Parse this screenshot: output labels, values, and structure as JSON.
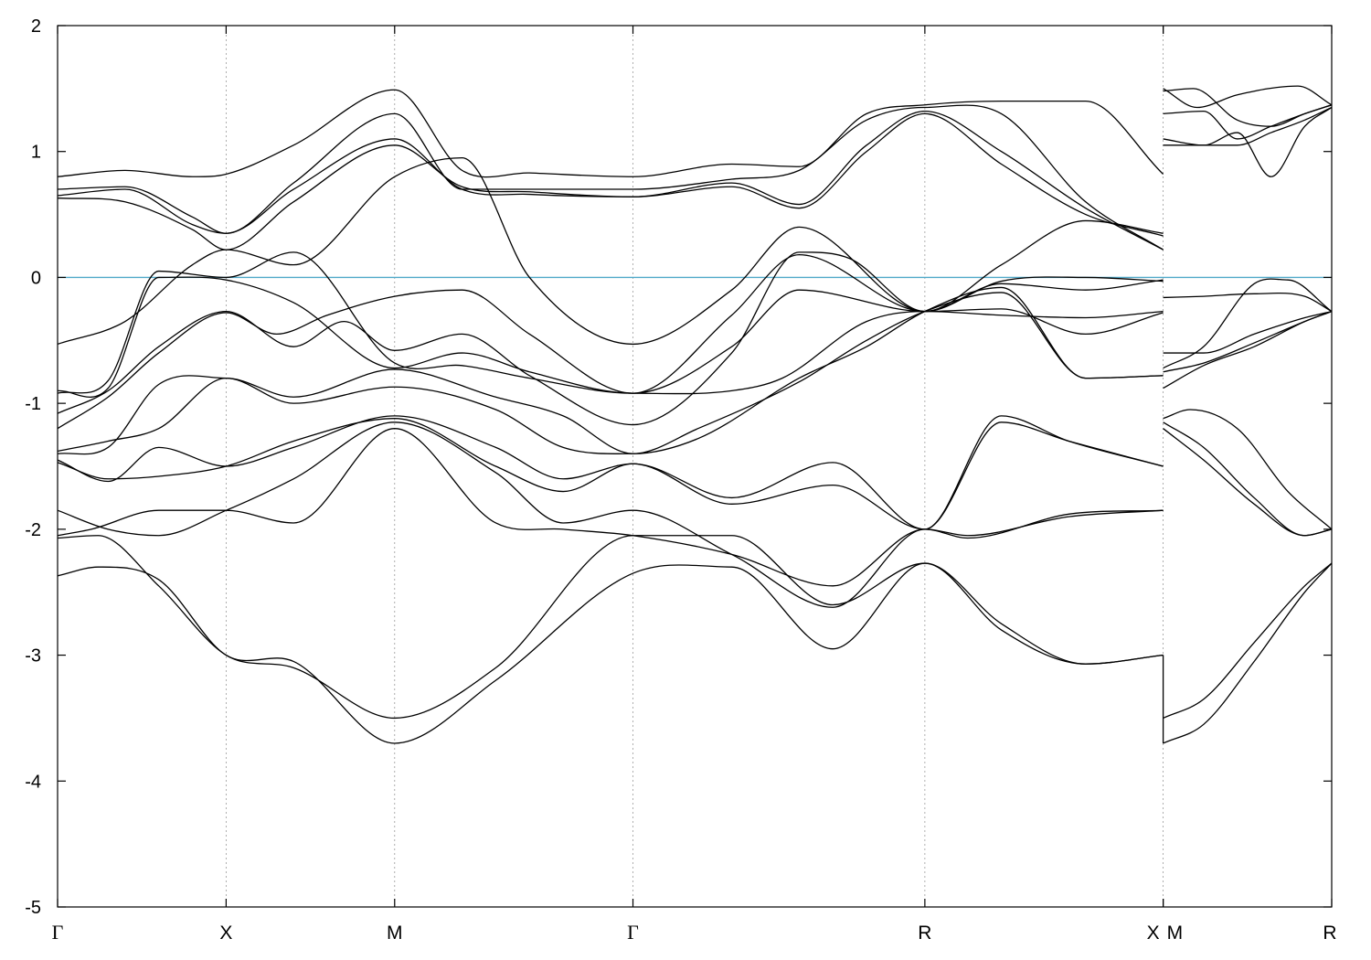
{
  "chart_data": {
    "type": "line",
    "title": "",
    "xlabel": "",
    "ylabel": "",
    "ylim": [
      -5,
      2
    ],
    "y_ticks": [
      -5,
      -4,
      -3,
      -2,
      -1,
      0,
      1,
      2
    ],
    "grid": "vertical dotted lines at high-symmetry points",
    "fermi_level": {
      "y": 0,
      "color": "#4fa8c8"
    },
    "line_color": "#000000",
    "k_labels": [
      {
        "label": "Γ",
        "k": 0.0
      },
      {
        "label": "X",
        "k": 0.5
      },
      {
        "label": "M",
        "k": 1.0
      },
      {
        "label": "Γ",
        "k": 1.707
      },
      {
        "label": "R",
        "k": 2.573
      },
      {
        "label": "X",
        "k": 3.28
      },
      {
        "label": "M",
        "k": 3.28
      },
      {
        "label": "R",
        "k": 3.78
      }
    ],
    "panel_break_k": 3.28,
    "segments": [
      {
        "name": "Γ-X-M-Γ-R-X",
        "k_range": [
          0.0,
          3.28
        ],
        "bands": [
          {
            "k": [
              0,
              0.12,
              0.3,
              0.5,
              0.7,
              1.0,
              1.3,
              1.707,
              2.0,
              2.3,
              2.573,
              2.8,
              3.05,
              3.28
            ],
            "e": [
              -2.37,
              -2.3,
              -2.4,
              -3.0,
              -3.05,
              -3.7,
              -3.2,
              -2.35,
              -2.3,
              -2.95,
              -2.27,
              -2.8,
              -3.07,
              -3.0
            ]
          },
          {
            "k": [
              0,
              0.12,
              0.3,
              0.5,
              0.7,
              1.0,
              1.3,
              1.707,
              2.0,
              2.3,
              2.573,
              2.8,
              3.05,
              3.28
            ],
            "e": [
              -2.07,
              -2.05,
              -2.45,
              -3.0,
              -3.1,
              -3.5,
              -3.1,
              -2.05,
              -2.05,
              -2.6,
              -2.27,
              -2.75,
              -3.07,
              -3.0
            ]
          },
          {
            "k": [
              0,
              0.1,
              0.3,
              0.5,
              0.7,
              1.0,
              1.3,
              1.5,
              1.707,
              2.0,
              2.3,
              2.573,
              2.7,
              3.0,
              3.28
            ],
            "e": [
              -2.05,
              -2.0,
              -1.85,
              -1.85,
              -1.95,
              -1.2,
              -1.95,
              -2.0,
              -2.05,
              -2.2,
              -2.45,
              -2.0,
              -2.05,
              -1.9,
              -1.85
            ]
          },
          {
            "k": [
              0,
              0.15,
              0.3,
              0.5,
              0.7,
              1.0,
              1.3,
              1.5,
              1.707,
              2.0,
              2.3,
              2.573,
              2.7,
              3.0,
              3.28
            ],
            "e": [
              -1.85,
              -2.0,
              -2.05,
              -1.85,
              -1.6,
              -1.15,
              -1.55,
              -1.95,
              -1.85,
              -2.2,
              -2.62,
              -2.0,
              -2.07,
              -1.88,
              -1.85
            ]
          },
          {
            "k": [
              0,
              0.15,
              0.3,
              0.5,
              0.7,
              1.0,
              1.3,
              1.5,
              1.707,
              2.0,
              2.3,
              2.573,
              2.8,
              3.0,
              3.28
            ],
            "e": [
              -1.47,
              -1.6,
              -1.58,
              -1.5,
              -1.3,
              -1.12,
              -1.5,
              -1.7,
              -1.48,
              -1.75,
              -1.47,
              -2.0,
              -1.15,
              -1.3,
              -1.5
            ]
          },
          {
            "k": [
              0,
              0.15,
              0.3,
              0.5,
              0.7,
              1.0,
              1.3,
              1.5,
              1.707,
              2.0,
              2.3,
              2.573,
              2.8,
              3.0,
              3.28
            ],
            "e": [
              -1.45,
              -1.62,
              -1.35,
              -1.5,
              -1.35,
              -1.1,
              -1.35,
              -1.6,
              -1.48,
              -1.8,
              -1.65,
              -2.0,
              -1.1,
              -1.3,
              -1.5
            ]
          },
          {
            "k": [
              0,
              0.15,
              0.3,
              0.5,
              0.7,
              1.0,
              1.3,
              1.5,
              1.707,
              1.9,
              2.2,
              2.4,
              2.573,
              2.8,
              3.05,
              3.28
            ],
            "e": [
              -1.4,
              -1.35,
              -0.85,
              -0.8,
              -1.0,
              -0.87,
              -1.05,
              -1.35,
              -1.4,
              -1.28,
              -0.8,
              -0.55,
              -0.27,
              -0.08,
              -0.8,
              -0.78
            ]
          },
          {
            "k": [
              0,
              0.15,
              0.3,
              0.5,
              0.7,
              1.0,
              1.3,
              1.5,
              1.707,
              1.9,
              2.2,
              2.4,
              2.573,
              2.8,
              3.05,
              3.28
            ],
            "e": [
              -1.38,
              -1.3,
              -1.2,
              -0.8,
              -0.95,
              -0.73,
              -0.95,
              -1.1,
              -1.4,
              -1.2,
              -0.83,
              -0.5,
              -0.27,
              -0.12,
              -0.8,
              -0.78
            ]
          },
          {
            "k": [
              0,
              0.15,
              0.3,
              0.5,
              0.65,
              0.8,
              1.0,
              1.2,
              1.4,
              1.707,
              2.0,
              2.15,
              2.4,
              2.573,
              2.8,
              3.05,
              3.28
            ],
            "e": [
              -1.2,
              -0.95,
              -0.6,
              -0.28,
              -0.45,
              -0.3,
              -0.15,
              -0.1,
              -0.45,
              -0.92,
              -0.9,
              -0.8,
              -0.35,
              -0.27,
              -0.3,
              -0.32,
              -0.27
            ]
          },
          {
            "k": [
              0,
              0.15,
              0.3,
              0.5,
              0.7,
              0.85,
              1.0,
              1.2,
              1.4,
              1.707,
              2.0,
              2.2,
              2.35,
              2.573,
              2.8,
              3.05,
              3.28
            ],
            "e": [
              -1.08,
              -0.9,
              -0.55,
              -0.27,
              -0.55,
              -0.35,
              -0.58,
              -0.45,
              -0.78,
              -1.17,
              -0.6,
              0.2,
              0.15,
              -0.27,
              -0.25,
              -0.45,
              -0.28
            ]
          },
          {
            "k": [
              0,
              0.15,
              0.3,
              0.5,
              0.7,
              1.0,
              1.2,
              1.4,
              1.707,
              2.0,
              2.2,
              2.573,
              2.8,
              3.05,
              3.28
            ],
            "e": [
              -0.9,
              -0.88,
              0.0,
              -0.02,
              -0.2,
              -0.72,
              -0.6,
              -0.75,
              -0.92,
              -0.55,
              -0.1,
              -0.27,
              -0.05,
              -0.1,
              -0.02
            ]
          },
          {
            "k": [
              0,
              0.15,
              0.3,
              0.5,
              0.7,
              1.0,
              1.2,
              1.4,
              1.707,
              2.0,
              2.2,
              2.573,
              2.8,
              3.05,
              3.28
            ],
            "e": [
              -0.92,
              -0.82,
              0.05,
              0.0,
              0.2,
              -0.68,
              -0.7,
              -0.8,
              -0.92,
              -0.3,
              0.18,
              -0.27,
              -0.03,
              0.0,
              -0.03
            ]
          },
          {
            "k": [
              0,
              0.2,
              0.4,
              0.5,
              0.7,
              1.0,
              1.2,
              1.4,
              1.707,
              2.0,
              2.2,
              2.573,
              2.8,
              3.05,
              3.28
            ],
            "e": [
              -0.53,
              -0.35,
              0.1,
              0.22,
              0.1,
              0.8,
              0.95,
              0.0,
              -0.53,
              -0.1,
              0.4,
              -0.27,
              0.1,
              0.45,
              0.35
            ]
          },
          {
            "k": [
              0,
              0.2,
              0.4,
              0.5,
              0.7,
              1.0,
              1.2,
              1.4,
              1.707,
              2.0,
              2.2,
              2.4,
              2.573,
              2.8,
              3.05,
              3.28
            ],
            "e": [
              0.63,
              0.6,
              0.38,
              0.22,
              0.6,
              1.05,
              0.72,
              0.68,
              0.64,
              0.72,
              0.55,
              1.0,
              1.3,
              0.9,
              0.5,
              0.33
            ]
          },
          {
            "k": [
              0,
              0.2,
              0.4,
              0.5,
              0.7,
              1.0,
              1.2,
              1.4,
              1.707,
              2.0,
              2.2,
              2.4,
              2.573,
              2.8,
              3.05,
              3.28
            ],
            "e": [
              0.65,
              0.7,
              0.42,
              0.35,
              0.7,
              1.1,
              0.7,
              0.66,
              0.64,
              0.75,
              0.58,
              1.05,
              1.32,
              1.0,
              0.55,
              0.22
            ]
          },
          {
            "k": [
              0,
              0.2,
              0.4,
              0.5,
              0.7,
              1.0,
              1.2,
              1.4,
              1.707,
              2.0,
              2.2,
              2.4,
              2.573,
              2.8,
              3.05,
              3.28
            ],
            "e": [
              0.7,
              0.72,
              0.48,
              0.35,
              0.75,
              1.3,
              0.7,
              0.7,
              0.7,
              0.78,
              0.85,
              1.25,
              1.35,
              1.3,
              0.6,
              0.22
            ]
          },
          {
            "k": [
              0,
              0.2,
              0.4,
              0.5,
              0.7,
              1.0,
              1.2,
              1.4,
              1.707,
              2.0,
              2.2,
              2.4,
              2.573,
              2.8,
              3.05,
              3.28
            ],
            "e": [
              0.8,
              0.85,
              0.8,
              0.82,
              1.05,
              1.49,
              0.85,
              0.83,
              0.8,
              0.9,
              0.88,
              1.3,
              1.37,
              1.4,
              1.4,
              0.82
            ]
          }
        ]
      },
      {
        "name": "M-R",
        "k_range": [
          3.28,
          3.78
        ],
        "bands": [
          {
            "k": [
              3.28,
              3.4,
              3.55,
              3.7,
              3.78
            ],
            "e": [
              -3.7,
              -3.55,
              -3.05,
              -2.5,
              -2.27
            ]
          },
          {
            "k": [
              3.28,
              3.4,
              3.55,
              3.7,
              3.78
            ],
            "e": [
              -3.5,
              -3.35,
              -2.9,
              -2.45,
              -2.27
            ]
          },
          {
            "k": [
              3.28,
              3.4,
              3.55,
              3.7,
              3.78
            ],
            "e": [
              -1.2,
              -1.45,
              -1.8,
              -2.05,
              -2.0
            ]
          },
          {
            "k": [
              3.28,
              3.4,
              3.55,
              3.7,
              3.78
            ],
            "e": [
              -1.15,
              -1.35,
              -1.75,
              -2.05,
              -2.0
            ]
          },
          {
            "k": [
              3.28,
              3.36,
              3.5,
              3.65,
              3.78
            ],
            "e": [
              -1.12,
              -1.05,
              -1.2,
              -1.7,
              -2.0
            ]
          },
          {
            "k": [
              3.28,
              3.4,
              3.55,
              3.7,
              3.78
            ],
            "e": [
              -0.88,
              -0.7,
              -0.55,
              -0.35,
              -0.27
            ]
          },
          {
            "k": [
              3.28,
              3.4,
              3.55,
              3.7,
              3.78
            ],
            "e": [
              -0.75,
              -0.68,
              -0.52,
              -0.35,
              -0.27
            ]
          },
          {
            "k": [
              3.28,
              3.4,
              3.55,
              3.7,
              3.78
            ],
            "e": [
              -0.6,
              -0.6,
              -0.45,
              -0.32,
              -0.27
            ]
          },
          {
            "k": [
              3.28,
              3.4,
              3.55,
              3.65,
              3.78
            ],
            "e": [
              -0.72,
              -0.55,
              -0.05,
              -0.02,
              -0.27
            ]
          },
          {
            "k": [
              3.28,
              3.4,
              3.55,
              3.7,
              3.78
            ],
            "e": [
              -0.16,
              -0.15,
              -0.13,
              -0.15,
              -0.27
            ]
          },
          {
            "k": [
              3.28,
              3.4,
              3.5,
              3.6,
              3.7,
              3.78
            ],
            "e": [
              1.05,
              1.05,
              1.15,
              0.8,
              1.2,
              1.35
            ]
          },
          {
            "k": [
              3.28,
              3.4,
              3.5,
              3.6,
              3.7,
              3.78
            ],
            "e": [
              1.1,
              1.05,
              1.05,
              1.15,
              1.25,
              1.35
            ]
          },
          {
            "k": [
              3.28,
              3.4,
              3.5,
              3.6,
              3.7,
              3.78
            ],
            "e": [
              1.3,
              1.32,
              1.1,
              1.2,
              1.3,
              1.37
            ]
          },
          {
            "k": [
              3.28,
              3.37,
              3.5,
              3.6,
              3.7,
              3.78
            ],
            "e": [
              1.48,
              1.5,
              1.25,
              1.2,
              1.3,
              1.37
            ]
          },
          {
            "k": [
              3.28,
              3.38,
              3.5,
              3.68,
              3.78
            ],
            "e": [
              1.5,
              1.35,
              1.45,
              1.52,
              1.37
            ]
          }
        ]
      }
    ]
  }
}
